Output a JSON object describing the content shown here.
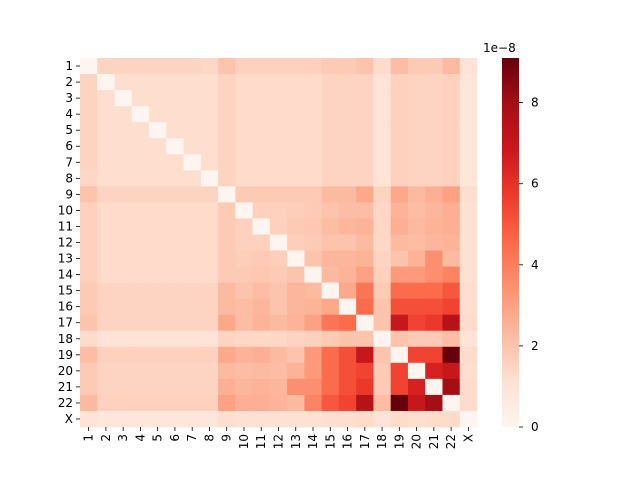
{
  "chart_data": {
    "type": "heatmap",
    "categories": [
      "1",
      "2",
      "3",
      "4",
      "5",
      "6",
      "7",
      "8",
      "9",
      "10",
      "11",
      "12",
      "13",
      "14",
      "15",
      "16",
      "17",
      "18",
      "19",
      "20",
      "21",
      "22",
      "X"
    ],
    "colormap": "Reds",
    "zlim": [
      0,
      9.1
    ],
    "zticks": [
      0,
      2,
      4,
      6,
      8
    ],
    "offset_text": "1e−8",
    "values": [
      [
        0,
        1.5,
        1.5,
        1.5,
        1.5,
        1.5,
        1.5,
        1.4,
        2.0,
        1.6,
        1.6,
        1.6,
        1.6,
        1.6,
        1.8,
        1.8,
        2.0,
        1.3,
        2.2,
        1.8,
        1.8,
        2.3,
        1.0
      ],
      [
        1.5,
        0,
        1.2,
        1.2,
        1.2,
        1.2,
        1.2,
        1.2,
        1.5,
        1.3,
        1.3,
        1.3,
        1.3,
        1.3,
        1.5,
        1.5,
        1.5,
        1.0,
        1.6,
        1.5,
        1.5,
        1.6,
        0.8
      ],
      [
        1.5,
        1.2,
        0,
        1.2,
        1.2,
        1.2,
        1.2,
        1.2,
        1.5,
        1.3,
        1.3,
        1.3,
        1.3,
        1.3,
        1.5,
        1.5,
        1.5,
        1.0,
        1.6,
        1.5,
        1.5,
        1.6,
        0.8
      ],
      [
        1.5,
        1.2,
        1.2,
        0,
        1.2,
        1.2,
        1.2,
        1.2,
        1.5,
        1.3,
        1.3,
        1.3,
        1.3,
        1.3,
        1.5,
        1.5,
        1.5,
        1.0,
        1.6,
        1.5,
        1.5,
        1.6,
        0.8
      ],
      [
        1.5,
        1.2,
        1.2,
        1.2,
        0,
        1.2,
        1.2,
        1.2,
        1.5,
        1.3,
        1.3,
        1.3,
        1.3,
        1.3,
        1.5,
        1.5,
        1.5,
        1.0,
        1.6,
        1.5,
        1.5,
        1.6,
        0.8
      ],
      [
        1.5,
        1.2,
        1.2,
        1.2,
        1.2,
        0,
        1.2,
        1.2,
        1.5,
        1.3,
        1.3,
        1.3,
        1.3,
        1.3,
        1.5,
        1.5,
        1.5,
        1.0,
        1.6,
        1.5,
        1.5,
        1.6,
        0.8
      ],
      [
        1.5,
        1.2,
        1.2,
        1.2,
        1.2,
        1.2,
        0,
        1.2,
        1.5,
        1.3,
        1.3,
        1.3,
        1.3,
        1.3,
        1.5,
        1.5,
        1.5,
        1.0,
        1.6,
        1.5,
        1.5,
        1.6,
        0.8
      ],
      [
        1.4,
        1.2,
        1.2,
        1.2,
        1.2,
        1.2,
        1.2,
        0,
        1.5,
        1.3,
        1.3,
        1.3,
        1.3,
        1.3,
        1.5,
        1.5,
        1.5,
        1.0,
        1.6,
        1.5,
        1.5,
        1.6,
        0.8
      ],
      [
        2.0,
        1.5,
        1.5,
        1.5,
        1.5,
        1.5,
        1.5,
        1.5,
        0,
        1.8,
        1.8,
        1.8,
        1.8,
        1.8,
        2.3,
        2.3,
        2.8,
        1.5,
        2.8,
        2.3,
        2.6,
        3.0,
        1.2
      ],
      [
        1.6,
        1.3,
        1.3,
        1.3,
        1.3,
        1.3,
        1.3,
        1.3,
        1.8,
        0,
        1.6,
        1.6,
        1.7,
        1.8,
        2.0,
        2.2,
        2.2,
        1.4,
        2.5,
        2.2,
        2.4,
        2.6,
        1.1
      ],
      [
        1.6,
        1.3,
        1.3,
        1.3,
        1.3,
        1.3,
        1.3,
        1.3,
        1.8,
        1.6,
        0,
        1.6,
        1.8,
        1.9,
        2.2,
        2.4,
        2.5,
        1.4,
        2.6,
        2.3,
        2.5,
        2.6,
        1.1
      ],
      [
        1.6,
        1.3,
        1.3,
        1.3,
        1.3,
        1.3,
        1.3,
        1.3,
        1.8,
        1.6,
        1.6,
        0,
        1.7,
        1.8,
        2.0,
        2.0,
        2.3,
        1.4,
        2.3,
        2.2,
        2.4,
        2.5,
        1.1
      ],
      [
        1.6,
        1.3,
        1.3,
        1.3,
        1.3,
        1.3,
        1.3,
        1.3,
        1.8,
        1.7,
        1.8,
        1.7,
        0,
        2.0,
        2.4,
        2.4,
        2.5,
        1.5,
        2.0,
        2.5,
        3.5,
        2.3,
        1.1
      ],
      [
        1.6,
        1.3,
        1.3,
        1.3,
        1.3,
        1.3,
        1.3,
        1.3,
        1.8,
        1.8,
        1.9,
        1.8,
        2.0,
        0,
        2.3,
        2.5,
        3.0,
        1.6,
        3.2,
        3.2,
        3.5,
        3.8,
        1.1
      ],
      [
        1.8,
        1.5,
        1.5,
        1.5,
        1.5,
        1.5,
        1.5,
        1.5,
        2.3,
        2.0,
        2.2,
        2.0,
        2.4,
        2.3,
        0,
        2.8,
        4.2,
        1.8,
        4.5,
        4.5,
        4.5,
        5.0,
        1.2
      ],
      [
        1.8,
        1.5,
        1.5,
        1.5,
        1.5,
        1.5,
        1.5,
        1.5,
        2.3,
        2.2,
        2.4,
        2.0,
        2.4,
        2.5,
        2.8,
        0,
        4.5,
        2.0,
        5.2,
        5.2,
        5.2,
        5.5,
        1.2
      ],
      [
        2.0,
        1.5,
        1.5,
        1.5,
        1.5,
        1.5,
        1.5,
        1.5,
        2.8,
        2.2,
        2.5,
        2.3,
        2.5,
        3.0,
        4.2,
        4.5,
        0,
        2.0,
        7.0,
        5.5,
        5.8,
        7.5,
        1.3
      ],
      [
        1.3,
        1.0,
        1.0,
        1.0,
        1.0,
        1.0,
        1.0,
        1.0,
        1.5,
        1.4,
        1.4,
        1.4,
        1.5,
        1.6,
        1.8,
        2.0,
        2.0,
        0,
        2.0,
        1.8,
        1.8,
        2.2,
        0.9
      ],
      [
        2.2,
        1.6,
        1.6,
        1.6,
        1.6,
        1.6,
        1.6,
        1.6,
        2.8,
        2.5,
        2.6,
        2.3,
        2.0,
        3.2,
        4.5,
        5.2,
        7.0,
        2.0,
        0,
        5.5,
        5.5,
        9.1,
        1.3
      ],
      [
        1.8,
        1.5,
        1.5,
        1.5,
        1.5,
        1.5,
        1.5,
        1.5,
        2.3,
        2.2,
        2.3,
        2.2,
        2.5,
        3.2,
        4.5,
        5.2,
        5.5,
        1.8,
        5.5,
        0,
        6.5,
        7.0,
        1.2
      ],
      [
        1.8,
        1.5,
        1.5,
        1.5,
        1.5,
        1.5,
        1.5,
        1.5,
        2.6,
        2.4,
        2.5,
        2.4,
        3.5,
        3.5,
        4.5,
        5.2,
        5.8,
        1.8,
        5.5,
        6.5,
        0,
        8.0,
        1.3
      ],
      [
        2.3,
        1.6,
        1.6,
        1.6,
        1.6,
        1.6,
        1.6,
        1.6,
        3.0,
        2.6,
        2.6,
        2.5,
        2.3,
        3.8,
        5.0,
        5.5,
        7.5,
        2.2,
        9.1,
        7.0,
        8.0,
        0,
        1.3
      ],
      [
        1.0,
        0.8,
        0.8,
        0.8,
        0.8,
        0.8,
        0.8,
        0.8,
        1.2,
        1.1,
        1.1,
        1.1,
        1.1,
        1.1,
        1.2,
        1.2,
        1.3,
        0.9,
        1.3,
        1.2,
        1.3,
        1.3,
        0
      ]
    ]
  }
}
